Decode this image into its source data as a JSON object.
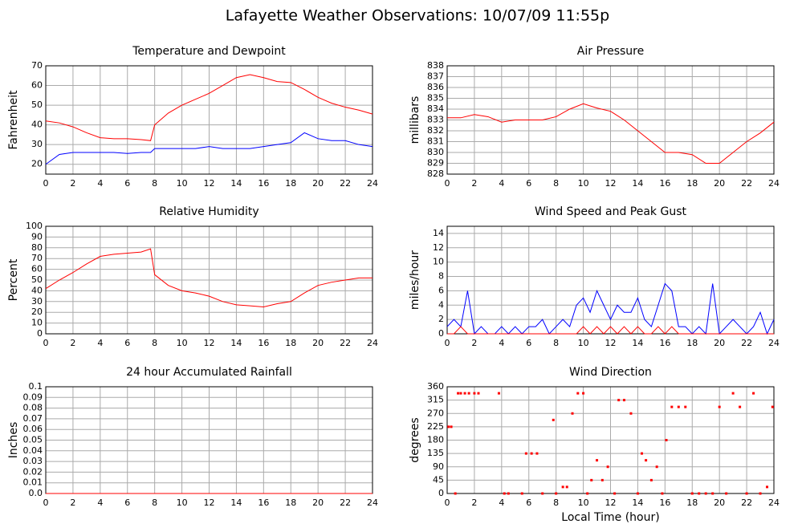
{
  "page_title": "Lafayette Weather Observations: 10/07/09 11:55p",
  "chart_data": [
    {
      "type": "line",
      "title": "Temperature and Dewpoint",
      "ylabel": "Fahrenheit",
      "x": [
        0,
        1,
        2,
        3,
        4,
        5,
        6,
        7,
        7.7,
        8,
        9,
        10,
        11,
        12,
        13,
        14,
        15,
        16,
        17,
        18,
        19,
        20,
        21,
        22,
        23,
        24
      ],
      "series": [
        {
          "color": "#ff0000",
          "values": [
            42,
            41,
            39,
            36,
            33.5,
            33,
            33,
            32.5,
            32,
            40,
            46,
            50,
            53,
            56,
            60,
            64,
            65.5,
            64,
            62,
            61.5,
            58,
            54,
            51,
            49,
            47.5,
            45.5
          ]
        },
        {
          "color": "#0000ff",
          "values": [
            20,
            25,
            26,
            26,
            26,
            26,
            25.5,
            26,
            26,
            28,
            28,
            28,
            28,
            29,
            28,
            28,
            28,
            29,
            30,
            31,
            36,
            33,
            32,
            32,
            30,
            29
          ]
        }
      ],
      "xlim": [
        0,
        24
      ],
      "xticks": [
        0,
        2,
        4,
        6,
        8,
        10,
        12,
        14,
        16,
        18,
        20,
        22,
        24
      ],
      "ylim": [
        15,
        70
      ],
      "yticks": [
        20,
        30,
        40,
        50,
        60,
        70
      ],
      "grid": true
    },
    {
      "type": "line",
      "title": "Air Pressure",
      "ylabel": "millibars",
      "x": [
        0,
        1,
        2,
        3,
        4,
        5,
        6,
        7,
        8,
        9,
        10,
        11,
        12,
        13,
        14,
        15,
        16,
        17,
        18,
        19,
        20,
        21,
        22,
        23,
        24
      ],
      "series": [
        {
          "color": "#ff0000",
          "values": [
            833.2,
            833.2,
            833.5,
            833.3,
            832.8,
            833,
            833,
            833,
            833.3,
            834,
            834.5,
            834.1,
            833.8,
            833,
            832,
            831,
            830,
            830,
            829.8,
            829,
            829,
            830,
            831,
            831.8,
            832.8
          ]
        }
      ],
      "xlim": [
        0,
        24
      ],
      "xticks": [
        0,
        2,
        4,
        6,
        8,
        10,
        12,
        14,
        16,
        18,
        20,
        22,
        24
      ],
      "ylim": [
        828,
        838
      ],
      "yticks": [
        828,
        829,
        830,
        831,
        832,
        833,
        834,
        835,
        836,
        837,
        838
      ],
      "grid": true
    },
    {
      "type": "line",
      "title": "Relative Humidity",
      "ylabel": "Percent",
      "x": [
        0,
        1,
        2,
        3,
        4,
        5,
        6,
        7,
        7.7,
        8,
        9,
        10,
        11,
        12,
        13,
        14,
        15,
        16,
        17,
        18,
        19,
        20,
        21,
        22,
        23,
        24
      ],
      "series": [
        {
          "color": "#ff0000",
          "values": [
            42,
            50,
            57,
            65,
            72,
            74,
            75,
            76,
            79,
            55,
            45,
            40,
            38,
            35,
            30,
            27,
            26,
            25,
            28,
            30,
            38,
            45,
            48,
            50,
            52,
            52
          ]
        }
      ],
      "xlim": [
        0,
        24
      ],
      "xticks": [
        0,
        2,
        4,
        6,
        8,
        10,
        12,
        14,
        16,
        18,
        20,
        22,
        24
      ],
      "ylim": [
        0,
        100
      ],
      "yticks": [
        0,
        10,
        20,
        30,
        40,
        50,
        60,
        70,
        80,
        90,
        100
      ],
      "grid": true
    },
    {
      "type": "line",
      "title": "Wind Speed and Peak Gust",
      "ylabel": "miles/hour",
      "x": [
        0,
        0.5,
        1,
        1.5,
        2,
        2.5,
        3,
        3.5,
        4,
        4.5,
        5,
        5.5,
        6,
        6.5,
        7,
        7.5,
        8,
        8.5,
        9,
        9.5,
        10,
        10.5,
        11,
        11.5,
        12,
        12.5,
        13,
        13.5,
        14,
        14.5,
        15,
        15.5,
        16,
        16.5,
        17,
        17.5,
        18,
        18.5,
        19,
        19.5,
        20,
        20.5,
        21,
        21.5,
        22,
        22.5,
        23,
        23.5,
        24
      ],
      "series": [
        {
          "color": "#0000ff",
          "values": [
            1,
            2,
            1,
            6,
            0,
            1,
            0,
            0,
            1,
            0,
            1,
            0,
            1,
            1,
            2,
            0,
            1,
            2,
            1,
            4,
            5,
            3,
            6,
            4,
            2,
            4,
            3,
            3,
            5,
            2,
            1,
            4,
            7,
            6,
            1,
            1,
            0,
            1,
            0,
            7,
            0,
            1,
            2,
            1,
            0,
            1,
            3,
            0,
            2
          ]
        },
        {
          "color": "#ff0000",
          "values": [
            0,
            0,
            1,
            0,
            0,
            0,
            0,
            0,
            0,
            0,
            0,
            0,
            0,
            0,
            0,
            0,
            0,
            0,
            0,
            0,
            1,
            0,
            1,
            0,
            1,
            0,
            1,
            0,
            1,
            0,
            0,
            1,
            0,
            1,
            0,
            0,
            0,
            0,
            0,
            0,
            0,
            0,
            0,
            0,
            0,
            0,
            0,
            0,
            0
          ]
        }
      ],
      "xlim": [
        0,
        24
      ],
      "xticks": [
        0,
        2,
        4,
        6,
        8,
        10,
        12,
        14,
        16,
        18,
        20,
        22,
        24
      ],
      "ylim": [
        0,
        15
      ],
      "yticks": [
        0,
        2,
        4,
        6,
        8,
        10,
        12,
        14
      ],
      "grid": true
    },
    {
      "type": "line",
      "title": "24 hour Accumulated Rainfall",
      "ylabel": "Inches",
      "x": [
        0,
        24
      ],
      "series": [
        {
          "color": "#ff0000",
          "values": [
            0,
            0
          ]
        }
      ],
      "xlim": [
        0,
        24
      ],
      "xticks": [
        0,
        2,
        4,
        6,
        8,
        10,
        12,
        14,
        16,
        18,
        20,
        22,
        24
      ],
      "ylim": [
        0,
        0.1
      ],
      "yticks": [
        {
          "value": 0,
          "label": "0.0"
        },
        0.01,
        0.02,
        0.03,
        0.04,
        0.05,
        0.06,
        0.07,
        0.08,
        0.09,
        0.1
      ],
      "grid": true
    },
    {
      "type": "scatter",
      "title": "Wind Direction",
      "ylabel": "degrees",
      "xlabel": "Local Time (hour)",
      "x": [
        0.1,
        0.3,
        0.6,
        0.8,
        1.0,
        1.3,
        1.6,
        2.0,
        2.3,
        3.8,
        4.2,
        4.5,
        5.5,
        5.8,
        6.2,
        6.6,
        7.0,
        7.8,
        8.0,
        8.5,
        8.8,
        9.2,
        9.6,
        10.0,
        10.3,
        10.6,
        11.0,
        11.4,
        11.8,
        12.3,
        12.6,
        13.0,
        13.5,
        14.0,
        14.3,
        14.6,
        15.0,
        15.4,
        15.8,
        16.1,
        16.5,
        17.0,
        17.5,
        18.0,
        18.5,
        19.0,
        19.5,
        20.0,
        20.5,
        21.0,
        21.5,
        22.0,
        22.5,
        23.0,
        23.5,
        23.9
      ],
      "series": [
        {
          "color": "#ff0000",
          "values": [
            225,
            225,
            0,
            338,
            338,
            338,
            338,
            338,
            338,
            338,
            0,
            0,
            0,
            135,
            135,
            135,
            0,
            248,
            0,
            22,
            22,
            270,
            338,
            338,
            0,
            45,
            112,
            45,
            90,
            0,
            315,
            315,
            270,
            0,
            135,
            112,
            45,
            90,
            0,
            180,
            292,
            292,
            292,
            0,
            0,
            0,
            0,
            292,
            0,
            338,
            292,
            0,
            338,
            0,
            22,
            292
          ]
        }
      ],
      "xlim": [
        0,
        24
      ],
      "xticks": [
        0,
        2,
        4,
        6,
        8,
        10,
        12,
        14,
        16,
        18,
        20,
        22,
        24
      ],
      "ylim": [
        0,
        360
      ],
      "yticks": [
        0,
        45,
        90,
        135,
        180,
        225,
        270,
        315,
        360
      ],
      "grid": true
    }
  ]
}
